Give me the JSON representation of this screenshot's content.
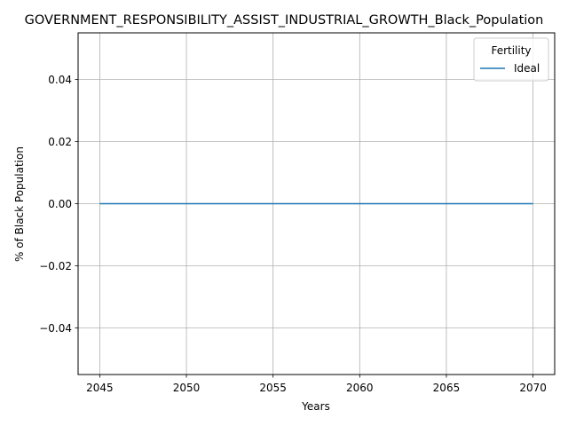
{
  "chart_data": {
    "type": "line",
    "title": "GOVERNMENT_RESPONSIBILITY_ASSIST_INDUSTRIAL_GROWTH_Black_Population",
    "xlabel": "Years",
    "ylabel": "% of Black Population",
    "xlim": [
      2043.75,
      2071.25
    ],
    "ylim": [
      -0.055,
      0.055
    ],
    "xticks": [
      2045,
      2050,
      2055,
      2060,
      2065,
      2070
    ],
    "xtick_labels": [
      "2045",
      "2050",
      "2055",
      "2060",
      "2065",
      "2070"
    ],
    "yticks": [
      -0.04,
      -0.02,
      0.0,
      0.02,
      0.04
    ],
    "ytick_labels": [
      "−0.04",
      "−0.02",
      "0.00",
      "0.02",
      "0.04"
    ],
    "grid": true,
    "legend": {
      "title": "Fertility",
      "placement": "top-right"
    },
    "series": [
      {
        "name": "Ideal",
        "color": "#1f77b4",
        "x": [
          2045,
          2050,
          2055,
          2060,
          2065,
          2070
        ],
        "y": [
          0,
          0,
          0,
          0,
          0,
          0
        ]
      }
    ]
  }
}
